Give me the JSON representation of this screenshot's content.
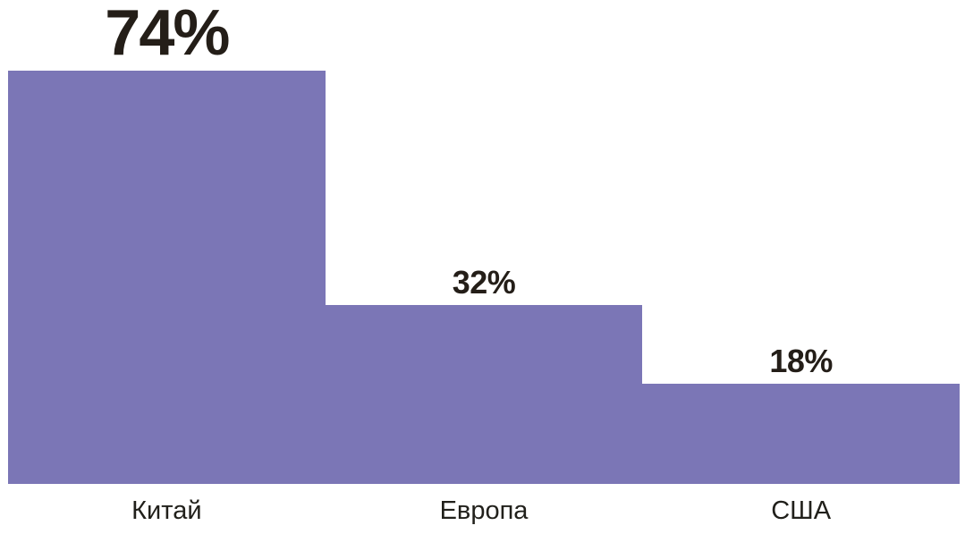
{
  "chart_data": {
    "type": "bar",
    "title": "",
    "xlabel": "",
    "ylabel": "",
    "categories": [
      "Китай",
      "Европа",
      "США"
    ],
    "values": [
      74,
      32,
      18
    ],
    "value_labels": [
      "74%",
      "32%",
      "18%"
    ],
    "ylim": [
      0,
      100
    ],
    "grid": false,
    "legend": null,
    "bar_color": "#7b76b6",
    "value_text_color": "#241e18",
    "category_text_color": "#21201b",
    "background_color": "#ffffff",
    "layout_hints": {
      "bars_contiguous": true,
      "axes_hidden": true,
      "value_label_position": "above-bar",
      "first_value_emphasized": true,
      "category_label_position": "below-baseline"
    }
  }
}
